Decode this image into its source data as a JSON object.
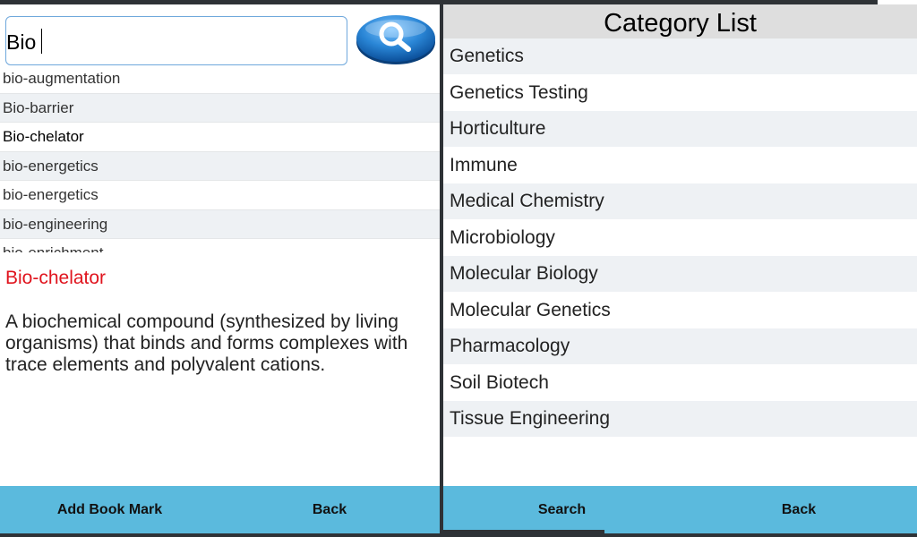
{
  "search": {
    "value": "Bio",
    "suggestions": [
      "bio-augmentation",
      "Bio-barrier",
      "Bio-chelator",
      "bio-energetics",
      "bio-energetics",
      "bio-engineering",
      "bio-enrichment"
    ]
  },
  "definition": {
    "term": "Bio-chelator",
    "text": "A biochemical compound (synthesized by living organisms) that binds and forms complexes with trace elements and polyvalent cations."
  },
  "left_bar": {
    "bookmark_label": "Add Book Mark",
    "back_label": "Back"
  },
  "category": {
    "title": "Category List",
    "items": [
      "Genetics",
      "Genetics Testing",
      "Horticulture",
      "Immune",
      "Medical Chemistry",
      "Microbiology",
      "Molecular Biology",
      "Molecular Genetics",
      "Pharmacology",
      "Soil Biotech",
      "Tissue Engineering"
    ]
  },
  "right_bar": {
    "search_label": "Search",
    "back_label": "Back"
  },
  "colors": {
    "accent_bar": "#5bbadd",
    "term_red": "#e0141e",
    "search_blue": "#2a86d6"
  },
  "icons": {
    "search_button": "magnifier-icon"
  }
}
